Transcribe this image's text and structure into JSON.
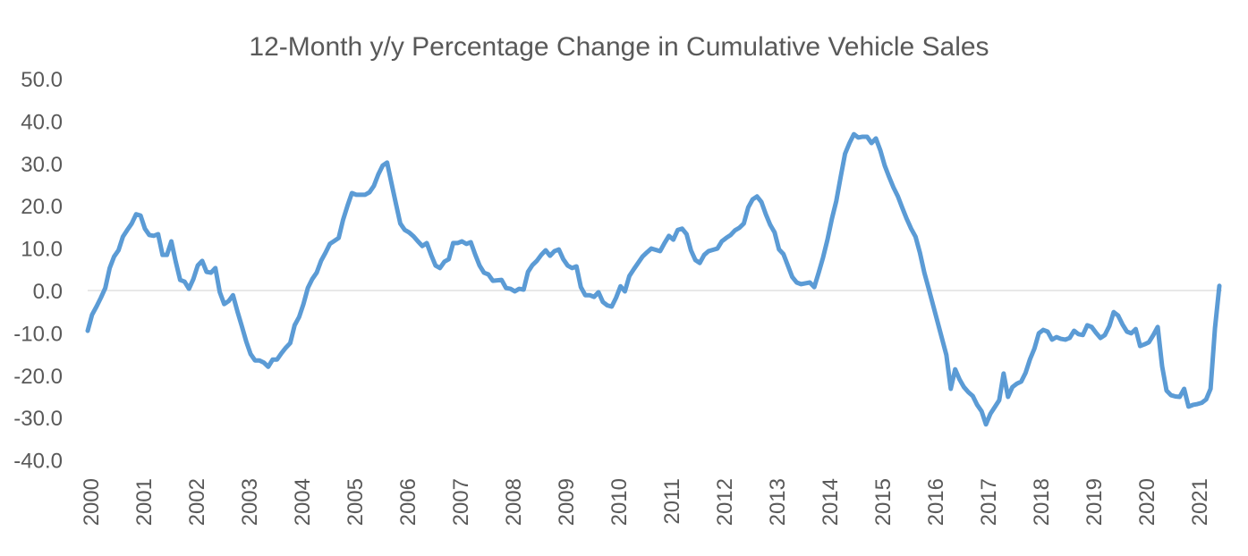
{
  "chart_data": {
    "type": "line",
    "title": "12-Month y/y Percentage Change in Cumulative Vehicle Sales",
    "xlabel": "",
    "ylabel": "",
    "ylim": [
      -40,
      50
    ],
    "y_ticks": [
      "50.0",
      "40.0",
      "30.0",
      "20.0",
      "10.0",
      "0.0",
      "-10.0",
      "-20.0",
      "-30.0",
      "-40.0"
    ],
    "y_tick_values": [
      50,
      40,
      30,
      20,
      10,
      0,
      -10,
      -20,
      -30,
      -40
    ],
    "x_ticks": [
      "2000",
      "2001",
      "2002",
      "2003",
      "2004",
      "2005",
      "2006",
      "2007",
      "2008",
      "2009",
      "2010",
      "2011",
      "2012",
      "2013",
      "2014",
      "2015",
      "2016",
      "2017",
      "2018",
      "2019",
      "2020",
      "2021"
    ],
    "x_tick_label_orientation": "vertical",
    "grid": "zero line only",
    "legend": "none",
    "line_color": "#5b9bd5",
    "zero_line_color": "#d9d9d9",
    "series": [
      {
        "start": "2000-01",
        "frequency": "monthly",
        "values": [
          -9.5,
          -5.7,
          -3.8,
          -1.7,
          0.6,
          5.3,
          8,
          9.5,
          12.7,
          14.3,
          15.8,
          18,
          17.7,
          14.6,
          13.1,
          12.9,
          13.3,
          8.4,
          8.4,
          11.6,
          6.8,
          2.5,
          2.1,
          0.4,
          2.7,
          5.9,
          7,
          4.4,
          4.2,
          5.3,
          -0.4,
          -3.2,
          -2.5,
          -1.1,
          -4.9,
          -8.4,
          -12,
          -15,
          -16.5,
          -16.5,
          -17,
          -18,
          -16.3,
          -16.3,
          -14.8,
          -13.5,
          -12.4,
          -8.2,
          -6.3,
          -3.2,
          0.6,
          2.7,
          4.2,
          7,
          8.9,
          11,
          11.7,
          12.4,
          16.7,
          20,
          23,
          22.6,
          22.6,
          22.6,
          23.2,
          24.7,
          27.4,
          29.5,
          30.2,
          25.3,
          20.5,
          15.8,
          14.3,
          13.7,
          12.8,
          11.6,
          10.5,
          11.2,
          8.4,
          5.9,
          5.3,
          6.8,
          7.4,
          11.2,
          11.2,
          11.6,
          11,
          11.4,
          8.5,
          5.9,
          4.2,
          3.8,
          2.3,
          2.4,
          2.5,
          0.6,
          0.4,
          -0.2,
          0.4,
          0.2,
          4.4,
          6,
          7,
          8.4,
          9.5,
          8.2,
          9.3,
          9.7,
          7.4,
          5.9,
          5.3,
          5.7,
          0.8,
          -1.1,
          -1.1,
          -1.5,
          -0.4,
          -2.7,
          -3.5,
          -3.8,
          -1.7,
          1,
          -0.2,
          3.4,
          5,
          6.5,
          8,
          9,
          9.9,
          9.6,
          9.3,
          11.2,
          12.9,
          12,
          14.3,
          14.6,
          13.3,
          9.5,
          7.2,
          6.5,
          8.4,
          9.3,
          9.6,
          9.9,
          11.6,
          12.4,
          13.1,
          14.2,
          14.8,
          15.8,
          19.6,
          21.5,
          22.2,
          20.9,
          18,
          15.5,
          13.7,
          9.7,
          8.6,
          5.9,
          3.2,
          1.9,
          1.5,
          1.7,
          1.9,
          0.8,
          4.2,
          7.8,
          12,
          16.9,
          21.1,
          26.8,
          32.3,
          34.8,
          36.9,
          36.1,
          36.3,
          36.3,
          34.8,
          35.9,
          33.1,
          29.5,
          26.8,
          24.3,
          22.2,
          19.5,
          16.9,
          14.6,
          12.7,
          8.9,
          4.2,
          0.4,
          -3.5,
          -7.4,
          -11.3,
          -15.2,
          -23.2,
          -18.6,
          -21,
          -22.8,
          -24,
          -24.9,
          -27,
          -28.5,
          -31.6,
          -29.1,
          -27.5,
          -25.9,
          -19.6,
          -25.1,
          -22.8,
          -22,
          -21.5,
          -19.4,
          -16.2,
          -13.7,
          -10.1,
          -9.3,
          -9.7,
          -11.6,
          -11,
          -11.4,
          -11.6,
          -11.2,
          -9.5,
          -10.3,
          -10.5,
          -8.2,
          -8.6,
          -10,
          -11.2,
          -10.5,
          -8.4,
          -5.1,
          -5.9,
          -8,
          -9.7,
          -10.1,
          -9.1,
          -13.1,
          -12.7,
          -12.2,
          -10.5,
          -8.6,
          -17.9,
          -23.6,
          -24.7,
          -25,
          -25.1,
          -23.2,
          -27.4,
          -27,
          -26.8,
          -26.5,
          -25.7,
          -23.2,
          -8.9,
          1.1
        ]
      }
    ]
  }
}
